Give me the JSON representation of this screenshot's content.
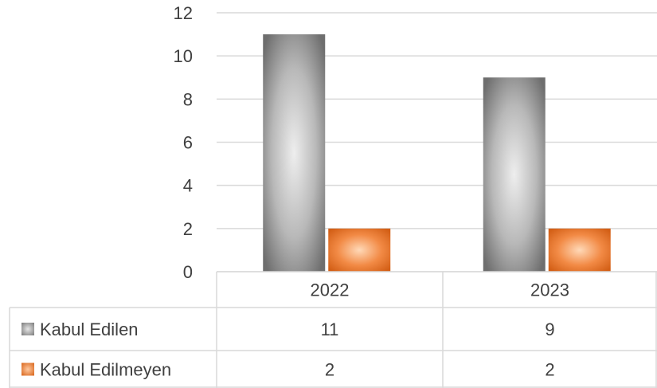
{
  "chart_data": {
    "type": "bar",
    "categories": [
      "2022",
      "2023"
    ],
    "series": [
      {
        "name": "Kabul Edilen",
        "values": [
          11,
          9
        ],
        "color": "#8c8c8c"
      },
      {
        "name": "Kabul Edilmeyen",
        "values": [
          2,
          2
        ],
        "color": "#ed7d31"
      }
    ],
    "ylim": [
      0,
      12
    ],
    "yticks": [
      0,
      2,
      4,
      6,
      8,
      10,
      12
    ],
    "grid": true,
    "legend": "data-table"
  }
}
